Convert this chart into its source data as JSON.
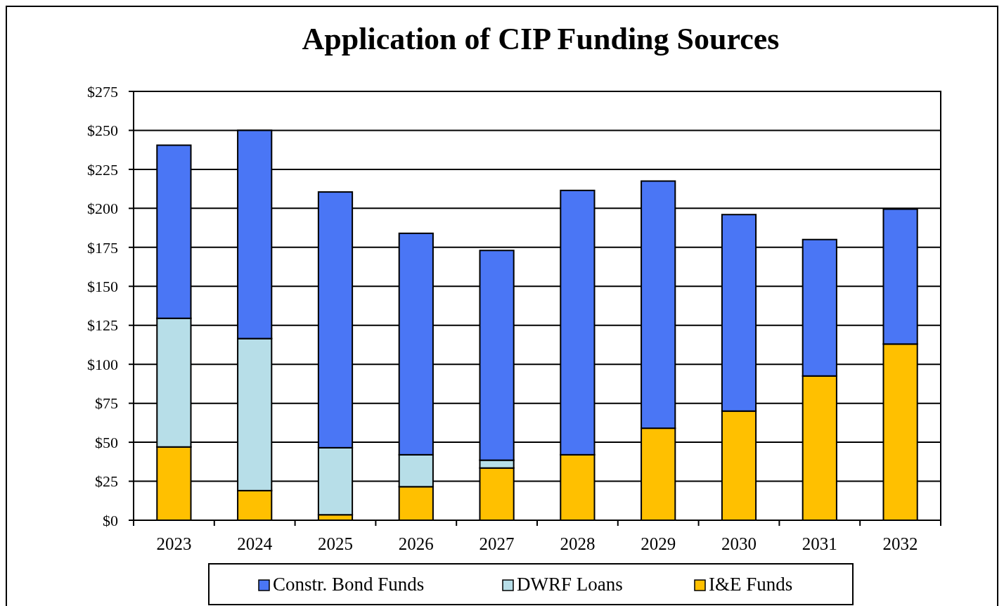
{
  "chart_data": {
    "type": "bar",
    "title": "Application of CIP Funding Sources",
    "stacked": true,
    "categories": [
      "2023",
      "2024",
      "2025",
      "2026",
      "2027",
      "2028",
      "2029",
      "2030",
      "2031",
      "2032"
    ],
    "series": [
      {
        "name": "I&E Funds",
        "color": "#ffc000",
        "values": [
          47,
          19,
          3.5,
          21.5,
          33.5,
          42,
          59,
          70,
          92.5,
          113
        ]
      },
      {
        "name": "DWRF Loans",
        "color": "#b7dee8",
        "values": [
          82.5,
          97.5,
          43,
          20.5,
          5,
          null,
          null,
          null,
          null,
          null
        ]
      },
      {
        "name": "Constr. Bond Funds",
        "color": "#4a76f5",
        "values": [
          111,
          133.5,
          164,
          142,
          134.5,
          169.5,
          158.5,
          126,
          87.5,
          86.5
        ]
      }
    ],
    "ylim": [
      0,
      275
    ],
    "yticks": [
      {
        "value": 0,
        "label": "$0"
      },
      {
        "value": 25,
        "label": "$25"
      },
      {
        "value": 50,
        "label": "$50"
      },
      {
        "value": 75,
        "label": "$75"
      },
      {
        "value": 100,
        "label": "$100"
      },
      {
        "value": 125,
        "label": "$125"
      },
      {
        "value": 150,
        "label": "$150"
      },
      {
        "value": 175,
        "label": "$175"
      },
      {
        "value": 200,
        "label": "$200"
      },
      {
        "value": 225,
        "label": "$225"
      },
      {
        "value": 250,
        "label": "$250"
      },
      {
        "value": 275,
        "label": "$275"
      }
    ],
    "grid": "y",
    "legend": "bottom"
  }
}
